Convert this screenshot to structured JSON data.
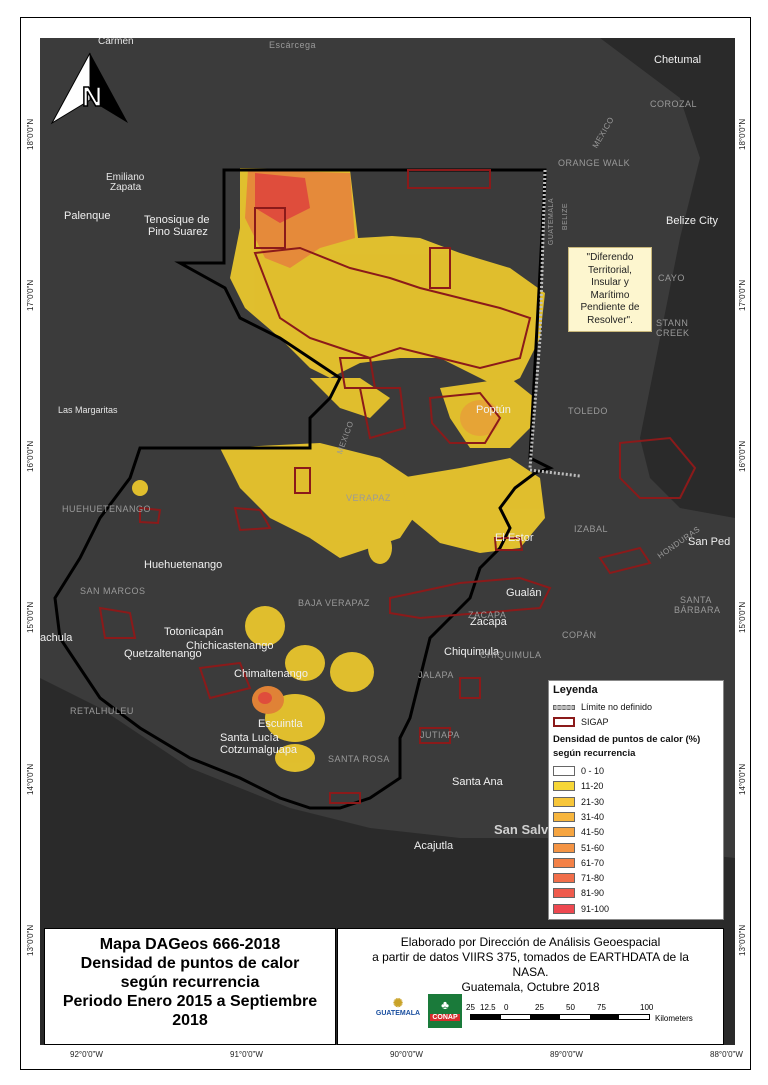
{
  "labels": {
    "carmen": "Carmen",
    "escarcega": "Escárcega",
    "chetumal": "Chetumal",
    "corozal": "COROZAL",
    "emiliano": "Emiliano",
    "zapata": "Zapata",
    "palenque": "Palenque",
    "tenosique1": "Tenosique de",
    "tenosique2": "Pino Suarez",
    "orange_walk": "ORANGE WALK",
    "belize_city": "Belize City",
    "cayo": "CAYO",
    "stann": "STANN",
    "creek": "CREEK",
    "las_margaritas": "Las Margaritas",
    "poptun": "Poptún",
    "toledo": "TOLEDO",
    "huehuetenango_dept": "HUEHUETENANGO",
    "verapaz": "VERAPAZ",
    "izabal": "IZABAL",
    "el_estor": "El Estor",
    "san_pedro": "San Ped",
    "huehuetenango": "Huehuetenango",
    "san_marcos": "SAN MARCOS",
    "baja_verapaz": "BAJA VERAPAZ",
    "gualan": "Gualán",
    "zacapa": "Zacapa",
    "zacapa_dept": "ZACAPA",
    "santa_barbara1": "SANTA",
    "santa_barbara2": "BÁRBARA",
    "copan": "COPÁN",
    "totonicapan": "Totonicapán",
    "chichicastenango": "Chichicastenango",
    "quetzaltenango": "Quetzaltenango",
    "chimaltenango": "Chimaltenango",
    "chiquimula": "Chiquimula",
    "chiquimula_dept": "CHIQUIMULA",
    "jalapa": "JALAPA",
    "jutiapa": "JUTIAPA",
    "retalhuleu": "RETALHULEU",
    "escuintla": "Escuintla",
    "santa_lucia1": "Santa Lucía",
    "santa_lucia2": "Cotzumalguapa",
    "santa_rosa": "SANTA ROSA",
    "santa_ana": "Santa Ana",
    "san_salvador": "San Salva",
    "acajutla": "Acajutla",
    "coatepeque": "achula",
    "mexico": "MEXICO",
    "guatemala_border": "GUATEMALA",
    "belize_border": "BELIZE",
    "honduras": "HONDURAS"
  },
  "ticks": {
    "lat": [
      "18°0'0\"N",
      "17°0'0\"N",
      "16°0'0\"N",
      "15°0'0\"N",
      "14°0'0\"N",
      "13°0'0\"N"
    ],
    "lon": [
      "92°0'0\"W",
      "91°0'0\"W",
      "90°0'0\"W",
      "89°0'0\"W",
      "88°0'0\"W"
    ]
  },
  "callout": {
    "text": "\"Diferendo Territorial, Insular y Marítimo Pendiente de Resolver\"."
  },
  "legend": {
    "title": "Leyenda",
    "limite": "Límite no definido",
    "sigap": "SIGAP",
    "density_title1": "Densidad de puntos de calor (%)",
    "density_title2": "según recurrencia",
    "classes": [
      {
        "label": "0 - 10",
        "color": "#ffffff"
      },
      {
        "label": "11-20",
        "color": "#f6d637"
      },
      {
        "label": "21-30",
        "color": "#f7c63a"
      },
      {
        "label": "31-40",
        "color": "#f7b63e"
      },
      {
        "label": "41-50",
        "color": "#f6a541"
      },
      {
        "label": "51-60",
        "color": "#f49444"
      },
      {
        "label": "61-70",
        "color": "#f38147"
      },
      {
        "label": "71-80",
        "color": "#f16e4a"
      },
      {
        "label": "81-90",
        "color": "#ef5b4d"
      },
      {
        "label": "91-100",
        "color": "#ee4850"
      }
    ]
  },
  "title_box": {
    "line1": "Mapa DAGeos 666-2018",
    "line2": "Densidad de puntos de calor",
    "line3": "según recurrencia",
    "line4": "Periodo Enero 2015 a Septiembre",
    "line5": "2018"
  },
  "credits": {
    "line1": "Elaborado por Dirección de Análisis Geoespacial",
    "line2": "a partir de datos VIIRS 375, tomados de EARTHDATA de la",
    "line3": "NASA.",
    "line4": "Guatemala, Octubre 2018",
    "logo_gt": "GUATEMALA",
    "logo_conap": "CONAP"
  },
  "scale": {
    "labels": [
      "25",
      "12.5",
      "0",
      "25",
      "50",
      "75",
      "100"
    ],
    "unit": "Kilometers"
  },
  "colors": {
    "background": "#3b3b3b",
    "border": "#000000",
    "protected_area": "#8b1a1a",
    "heat_low": "#e9c62d",
    "heat_high": "#e2553e"
  }
}
